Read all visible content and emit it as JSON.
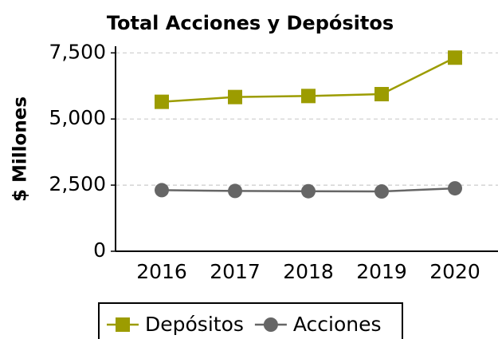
{
  "chart_data": {
    "type": "line",
    "title": "Total Acciones y Depósitos",
    "ylabel": "$ Millones",
    "categories": [
      "2016",
      "2017",
      "2018",
      "2019",
      "2020"
    ],
    "series": [
      {
        "name": "Depósitos",
        "color": "#9c9c00",
        "marker": "square",
        "values": [
          5650,
          5830,
          5870,
          5940,
          7320
        ]
      },
      {
        "name": "Acciones",
        "color": "#666666",
        "marker": "circle",
        "values": [
          2310,
          2280,
          2270,
          2260,
          2380
        ]
      }
    ],
    "ylim": [
      0,
      7750
    ],
    "yticks": [
      0,
      {
        "value": 2500,
        "label": "2,500"
      },
      {
        "value": 5000,
        "label": "5,000"
      },
      {
        "value": 7500,
        "label": "7,500"
      }
    ],
    "grid": true,
    "legend": "bottom"
  }
}
